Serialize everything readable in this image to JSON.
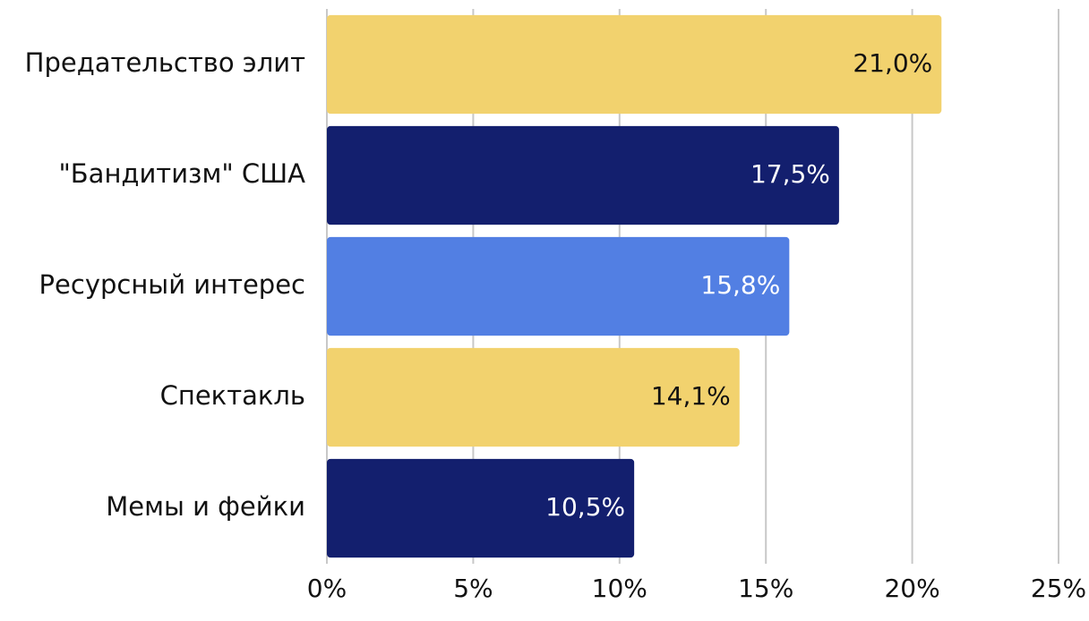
{
  "chart_data": {
    "type": "bar",
    "orientation": "horizontal",
    "categories": [
      "Предательство элит",
      "\"Бандитизм\" США",
      "Ресурсный интерес",
      "Спектакль",
      "Мемы и фейки"
    ],
    "values": [
      21.0,
      17.5,
      15.8,
      14.1,
      10.5
    ],
    "value_labels": [
      "21,0%",
      "17,5%",
      "15,8%",
      "14,1%",
      "10,5%"
    ],
    "colors": [
      "#f2d26e",
      "#131f6e",
      "#527fe3",
      "#f2d26e",
      "#131f6e"
    ],
    "xlim": [
      0,
      25
    ],
    "xticks": [
      {
        "value": 0,
        "label": "0%"
      },
      {
        "value": 5,
        "label": "5%"
      },
      {
        "value": 10,
        "label": "10%"
      },
      {
        "value": 15,
        "label": "15%"
      },
      {
        "value": 20,
        "label": "20%"
      },
      {
        "value": 25,
        "label": "25%"
      }
    ],
    "grid": true
  }
}
